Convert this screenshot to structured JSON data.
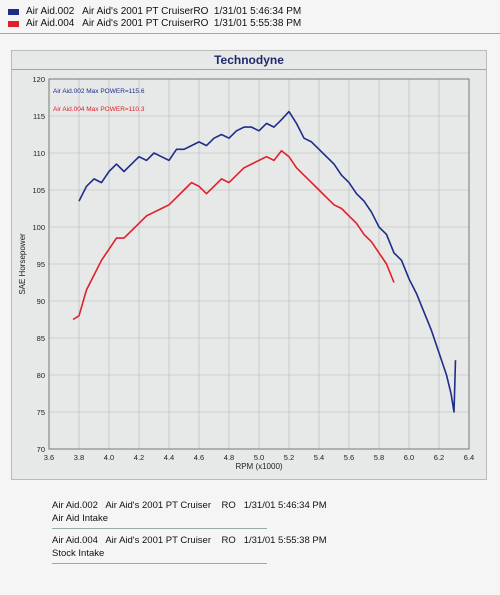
{
  "legend": [
    {
      "label": "Air Aid.002   Air Aid's 2001 PT CruiserRO  1/31/01 5:46:34 PM",
      "color": "#1f2d8a"
    },
    {
      "label": "Air Aid.004   Air Aid's 2001 PT CruiserRO  1/31/01 5:55:38 PM",
      "color": "#e0202a"
    }
  ],
  "notes": [
    {
      "line1": "Air Aid.002   Air Aid's 2001 PT Cruiser    RO   1/31/01 5:46:34 PM",
      "line2": "Air Aid Intake"
    },
    {
      "line1": "Air Aid.004   Air Aid's 2001 PT Cruiser    RO   1/31/01 5:55:38 PM",
      "line2": "Stock Intake"
    }
  ],
  "chart_data": {
    "type": "line",
    "title": "Technodyne",
    "xlabel": "RPM (x1000)",
    "ylabel": "SAE Horsepower",
    "xlim": [
      3.6,
      6.4
    ],
    "ylim": [
      70,
      120
    ],
    "xticks": [
      "3.6",
      "3.8",
      "4.0",
      "4.2",
      "4.4",
      "4.6",
      "4.8",
      "5.0",
      "5.2",
      "5.4",
      "5.6",
      "5.8",
      "6.0",
      "6.2",
      "6.4"
    ],
    "yticks": [
      "70",
      "75",
      "80",
      "85",
      "90",
      "95",
      "100",
      "105",
      "110",
      "115",
      "120"
    ],
    "grid": true,
    "annotations": [
      "Air Aid.002  Max POWER=115.6",
      "Air Aid.004  Max POWER=110.3"
    ],
    "series": [
      {
        "name": "Air Aid.002",
        "color": "#1f2d8a",
        "x": [
          3.8,
          3.85,
          3.9,
          3.95,
          4.0,
          4.05,
          4.1,
          4.15,
          4.2,
          4.25,
          4.3,
          4.35,
          4.4,
          4.45,
          4.5,
          4.55,
          4.6,
          4.65,
          4.7,
          4.75,
          4.8,
          4.85,
          4.9,
          4.95,
          5.0,
          5.05,
          5.1,
          5.15,
          5.2,
          5.25,
          5.3,
          5.35,
          5.4,
          5.45,
          5.5,
          5.55,
          5.6,
          5.65,
          5.7,
          5.75,
          5.8,
          5.85,
          5.9,
          5.95,
          6.0,
          6.05,
          6.1,
          6.15,
          6.2,
          6.25,
          6.28,
          6.3,
          6.31
        ],
        "y": [
          103.5,
          105.5,
          106.5,
          106.0,
          107.5,
          108.5,
          107.5,
          108.5,
          109.5,
          109.0,
          110.0,
          109.5,
          109.0,
          110.5,
          110.5,
          111.0,
          111.5,
          111.0,
          112.0,
          112.5,
          112.0,
          113.0,
          113.5,
          113.5,
          113.0,
          114.0,
          113.5,
          114.5,
          115.6,
          114.0,
          112.0,
          111.5,
          110.5,
          109.5,
          108.5,
          107.0,
          106.0,
          104.5,
          103.5,
          102.0,
          100.0,
          99.0,
          96.5,
          95.5,
          93.0,
          91.0,
          88.5,
          86.0,
          83.0,
          80.0,
          77.5,
          75.0,
          82.0
        ]
      },
      {
        "name": "Air Aid.004",
        "color": "#e0202a",
        "x": [
          3.76,
          3.8,
          3.85,
          3.9,
          3.95,
          4.0,
          4.05,
          4.1,
          4.15,
          4.2,
          4.25,
          4.3,
          4.35,
          4.4,
          4.45,
          4.5,
          4.55,
          4.6,
          4.65,
          4.7,
          4.75,
          4.8,
          4.85,
          4.9,
          4.95,
          5.0,
          5.05,
          5.1,
          5.15,
          5.2,
          5.25,
          5.3,
          5.35,
          5.4,
          5.45,
          5.5,
          5.55,
          5.6,
          5.65,
          5.7,
          5.75,
          5.8,
          5.85,
          5.9
        ],
        "y": [
          87.5,
          88.0,
          91.5,
          93.5,
          95.5,
          97.0,
          98.5,
          98.5,
          99.5,
          100.5,
          101.5,
          102.0,
          102.5,
          103.0,
          104.0,
          105.0,
          106.0,
          105.5,
          104.5,
          105.5,
          106.5,
          106.0,
          107.0,
          108.0,
          108.5,
          109.0,
          109.5,
          109.0,
          110.3,
          109.5,
          108.0,
          107.0,
          106.0,
          105.0,
          104.0,
          103.0,
          102.5,
          101.5,
          100.5,
          99.0,
          98.0,
          96.5,
          95.0,
          92.5
        ]
      }
    ]
  }
}
